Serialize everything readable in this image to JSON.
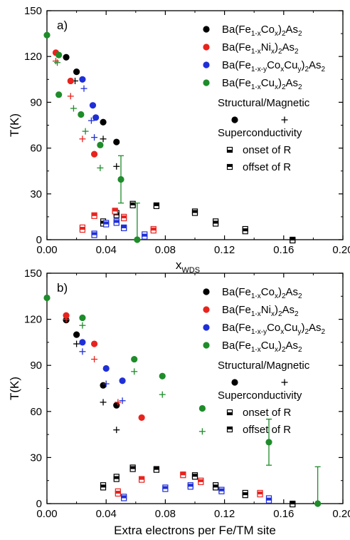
{
  "colors": {
    "Co": "#000000",
    "Ni": "#e8231e",
    "CoCu": "#1f2fd8",
    "Cu": "#1e8c2a",
    "axis": "#000000"
  },
  "chart_data": [
    {
      "type": "scatter",
      "panel_label": "a)",
      "xlabel_main": "x",
      "xlabel_sub": "WDS",
      "ylabel": "T(K)",
      "xlim": [
        0,
        0.2
      ],
      "ylim": [
        0,
        150
      ],
      "x_ticks": [
        "0.00",
        "0.04",
        "0.08",
        "0.12",
        "0.16",
        "0.20"
      ],
      "y_ticks": [
        "0",
        "30",
        "60",
        "90",
        "120",
        "150"
      ],
      "legend": {
        "series": [
          {
            "key": "Co",
            "parts": [
              [
                "Ba(Fe",
                ""
              ],
              [
                "1-x",
                "sub"
              ],
              [
                "Co",
                ""
              ],
              [
                "x",
                "sub"
              ],
              [
                ")",
                ""
              ],
              [
                "2",
                "sub"
              ],
              [
                "As",
                ""
              ],
              [
                "2",
                "sub"
              ]
            ]
          },
          {
            "key": "Ni",
            "parts": [
              [
                "Ba(Fe",
                ""
              ],
              [
                "1-x",
                "sub"
              ],
              [
                "Ni",
                ""
              ],
              [
                "x",
                "sub"
              ],
              [
                ")",
                ""
              ],
              [
                "2",
                "sub"
              ],
              [
                "As",
                ""
              ],
              [
                "2",
                "sub"
              ]
            ]
          },
          {
            "key": "CoCu",
            "parts": [
              [
                "Ba(Fe",
                ""
              ],
              [
                "1-x-y",
                "sub"
              ],
              [
                "Co",
                ""
              ],
              [
                "x",
                "sub"
              ],
              [
                "Cu",
                ""
              ],
              [
                "y",
                "sub"
              ],
              [
                ")",
                ""
              ],
              [
                "2",
                "sub"
              ],
              [
                "As",
                ""
              ],
              [
                "2",
                "sub"
              ]
            ]
          },
          {
            "key": "Cu",
            "parts": [
              [
                "Ba(Fe",
                ""
              ],
              [
                "1-x",
                "sub"
              ],
              [
                "Cu",
                ""
              ],
              [
                "x",
                "sub"
              ],
              [
                ")",
                ""
              ],
              [
                "2",
                "sub"
              ],
              [
                "As",
                ""
              ],
              [
                "2",
                "sub"
              ]
            ]
          }
        ],
        "structural_label": "Structural/Magnetic",
        "superconductivity_label": "Superconductivity",
        "onset_label": "onset of R",
        "offset_label": "offset of R"
      },
      "series": [
        {
          "name": "Ba(Fe1-xCox)2As2",
          "color_key": "Co",
          "structural": [
            [
              0.013,
              119.5
            ],
            [
              0.02,
              110
            ],
            [
              0.038,
              77
            ],
            [
              0.047,
              64
            ]
          ],
          "magnetic": [
            [
              0.019,
              104
            ],
            [
              0.038,
              66
            ],
            [
              0.047,
              48
            ]
          ],
          "onset": [
            [
              0.038,
              12
            ],
            [
              0.047,
              17.5
            ],
            [
              0.058,
              23.5
            ],
            [
              0.074,
              22.5
            ],
            [
              0.1,
              18.5
            ],
            [
              0.114,
              12
            ],
            [
              0.134,
              7
            ],
            [
              0.166,
              0
            ]
          ],
          "offset": [
            [
              0.038,
              10.5
            ],
            [
              0.047,
              16
            ],
            [
              0.058,
              22.5
            ],
            [
              0.074,
              22
            ],
            [
              0.1,
              17.5
            ],
            [
              0.114,
              10.5
            ],
            [
              0.134,
              5.5
            ],
            [
              0.166,
              -0.5
            ]
          ]
        },
        {
          "name": "Ba(Fe1-xNix)2As2",
          "color_key": "Ni",
          "structural": [
            [
              0.006,
              122.5
            ],
            [
              0.016,
              104
            ],
            [
              0.032,
              56
            ]
          ],
          "magnetic": [
            [
              0.006,
              117
            ],
            [
              0.016,
              94
            ],
            [
              0.024,
              66
            ]
          ],
          "onset": [
            [
              0.024,
              8
            ],
            [
              0.032,
              16
            ],
            [
              0.046,
              19
            ],
            [
              0.052,
              15
            ],
            [
              0.072,
              7
            ]
          ],
          "offset": [
            [
              0.024,
              6.5
            ],
            [
              0.032,
              15.5
            ],
            [
              0.046,
              18.5
            ],
            [
              0.052,
              14
            ],
            [
              0.072,
              6
            ]
          ]
        },
        {
          "name": "Ba(Fe1-x-yCoxCuy)2As2",
          "color_key": "CoCu",
          "structural": [
            [
              0.024,
              105
            ],
            [
              0.031,
              88
            ],
            [
              0.033,
              80
            ]
          ],
          "magnetic": [
            [
              0.025,
              99
            ],
            [
              0.03,
              78
            ],
            [
              0.032,
              67
            ]
          ],
          "onset": [
            [
              0.032,
              4
            ],
            [
              0.04,
              11
            ],
            [
              0.047,
              12
            ],
            [
              0.052,
              8
            ],
            [
              0.066,
              3.5
            ]
          ],
          "offset": [
            [
              0.032,
              3
            ],
            [
              0.04,
              10
            ],
            [
              0.047,
              11
            ],
            [
              0.052,
              7.5
            ],
            [
              0.066,
              2
            ]
          ]
        },
        {
          "name": "Ba(Fe1-xCux)2As2",
          "color_key": "Cu",
          "structural": [
            [
              0.0,
              134
            ],
            [
              0.008,
              121
            ],
            [
              0.008,
              95
            ],
            [
              0.023,
              82
            ],
            [
              0.036,
              62
            ],
            [
              0.05,
              39.5
            ],
            [
              0.061,
              0
            ]
          ],
          "magnetic": [
            [
              0.007,
              116
            ],
            [
              0.018,
              86
            ],
            [
              0.026,
              71
            ],
            [
              0.036,
              47
            ]
          ],
          "errorbars": [
            [
              0.05,
              24,
              55
            ],
            [
              0.061,
              0,
              24
            ]
          ]
        }
      ]
    },
    {
      "type": "scatter",
      "panel_label": "b)",
      "xlabel": "Extra electrons per Fe/TM site",
      "ylabel": "T(K)",
      "xlim": [
        0,
        0.2
      ],
      "ylim": [
        0,
        150
      ],
      "x_ticks": [
        "0.00",
        "0.04",
        "0.08",
        "0.12",
        "0.16",
        "0.20"
      ],
      "y_ticks": [
        "0",
        "30",
        "60",
        "90",
        "120",
        "150"
      ],
      "legend": {
        "series": [
          {
            "key": "Co",
            "parts": [
              [
                "Ba(Fe",
                ""
              ],
              [
                "1-x",
                "sub"
              ],
              [
                "Co",
                ""
              ],
              [
                "x",
                "sub"
              ],
              [
                ")",
                ""
              ],
              [
                "2",
                "sub"
              ],
              [
                "As",
                ""
              ],
              [
                "2",
                "sub"
              ]
            ]
          },
          {
            "key": "Ni",
            "parts": [
              [
                "Ba(Fe",
                ""
              ],
              [
                "1-x",
                "sub"
              ],
              [
                "Ni",
                ""
              ],
              [
                "x",
                "sub"
              ],
              [
                ")",
                ""
              ],
              [
                "2",
                "sub"
              ],
              [
                "As",
                ""
              ],
              [
                "2",
                "sub"
              ]
            ]
          },
          {
            "key": "CoCu",
            "parts": [
              [
                "Ba(Fe",
                ""
              ],
              [
                "1-x-y",
                "sub"
              ],
              [
                "Co",
                ""
              ],
              [
                "x",
                "sub"
              ],
              [
                "Cu",
                ""
              ],
              [
                "y",
                "sub"
              ],
              [
                ")",
                ""
              ],
              [
                "2",
                "sub"
              ],
              [
                "As",
                ""
              ],
              [
                "2",
                "sub"
              ]
            ]
          },
          {
            "key": "Cu",
            "parts": [
              [
                "Ba(Fe",
                ""
              ],
              [
                "1-x",
                "sub"
              ],
              [
                "Cu",
                ""
              ],
              [
                "x",
                "sub"
              ],
              [
                ")",
                ""
              ],
              [
                "2",
                "sub"
              ],
              [
                "As",
                ""
              ],
              [
                "2",
                "sub"
              ]
            ]
          }
        ],
        "structural_label": "Structural/Magnetic",
        "superconductivity_label": "Superconductivity",
        "onset_label": "onset of R",
        "offset_label": "offset of R"
      },
      "series": [
        {
          "name": "Ba(Fe1-xCox)2As2",
          "color_key": "Co",
          "structural": [
            [
              0.013,
              119.5
            ],
            [
              0.02,
              110
            ],
            [
              0.038,
              77
            ],
            [
              0.047,
              64
            ]
          ],
          "magnetic": [
            [
              0.02,
              104
            ],
            [
              0.038,
              66
            ],
            [
              0.047,
              48
            ]
          ],
          "onset": [
            [
              0.038,
              12
            ],
            [
              0.047,
              17.5
            ],
            [
              0.058,
              23.5
            ],
            [
              0.074,
              22.5
            ],
            [
              0.1,
              18.5
            ],
            [
              0.114,
              12
            ],
            [
              0.134,
              7
            ],
            [
              0.166,
              0
            ]
          ],
          "offset": [
            [
              0.038,
              10.5
            ],
            [
              0.047,
              16
            ],
            [
              0.058,
              22.5
            ],
            [
              0.074,
              22
            ],
            [
              0.1,
              17.5
            ],
            [
              0.114,
              10.5
            ],
            [
              0.134,
              5.5
            ],
            [
              0.166,
              -0.5
            ]
          ]
        },
        {
          "name": "Ba(Fe1-xNix)2As2",
          "color_key": "Ni",
          "structural": [
            [
              0.013,
              122.5
            ],
            [
              0.032,
              104
            ],
            [
              0.064,
              56
            ]
          ],
          "magnetic": [
            [
              0.013,
              120
            ],
            [
              0.032,
              94
            ],
            [
              0.048,
              66
            ]
          ],
          "onset": [
            [
              0.048,
              8
            ],
            [
              0.064,
              16
            ],
            [
              0.092,
              19
            ],
            [
              0.104,
              15
            ],
            [
              0.144,
              7
            ]
          ],
          "offset": [
            [
              0.048,
              6.5
            ],
            [
              0.064,
              15.5
            ],
            [
              0.092,
              18.5
            ],
            [
              0.104,
              14
            ],
            [
              0.144,
              6
            ]
          ]
        },
        {
          "name": "Ba(Fe1-x-yCoxCuy)2As2",
          "color_key": "CoCu",
          "structural": [
            [
              0.024,
              105
            ],
            [
              0.04,
              88
            ],
            [
              0.051,
              80
            ]
          ],
          "magnetic": [
            [
              0.024,
              99
            ],
            [
              0.04,
              78
            ],
            [
              0.051,
              67
            ]
          ],
          "onset": [
            [
              0.052,
              4.5
            ],
            [
              0.08,
              10.5
            ],
            [
              0.097,
              12
            ],
            [
              0.118,
              9
            ],
            [
              0.15,
              3.5
            ]
          ],
          "offset": [
            [
              0.052,
              3.5
            ],
            [
              0.08,
              9.5
            ],
            [
              0.097,
              11
            ],
            [
              0.118,
              8
            ],
            [
              0.15,
              2
            ]
          ]
        },
        {
          "name": "Ba(Fe1-xCux)2As2",
          "color_key": "Cu",
          "structural": [
            [
              0.0,
              134
            ],
            [
              0.024,
              121
            ],
            [
              0.059,
              94
            ],
            [
              0.078,
              83
            ],
            [
              0.105,
              62
            ],
            [
              0.15,
              40
            ],
            [
              0.183,
              0
            ]
          ],
          "magnetic": [
            [
              0.024,
              116
            ],
            [
              0.059,
              86
            ],
            [
              0.078,
              71
            ],
            [
              0.105,
              47
            ]
          ],
          "errorbars": [
            [
              0.15,
              25,
              55
            ],
            [
              0.183,
              0,
              24
            ]
          ]
        }
      ]
    }
  ]
}
